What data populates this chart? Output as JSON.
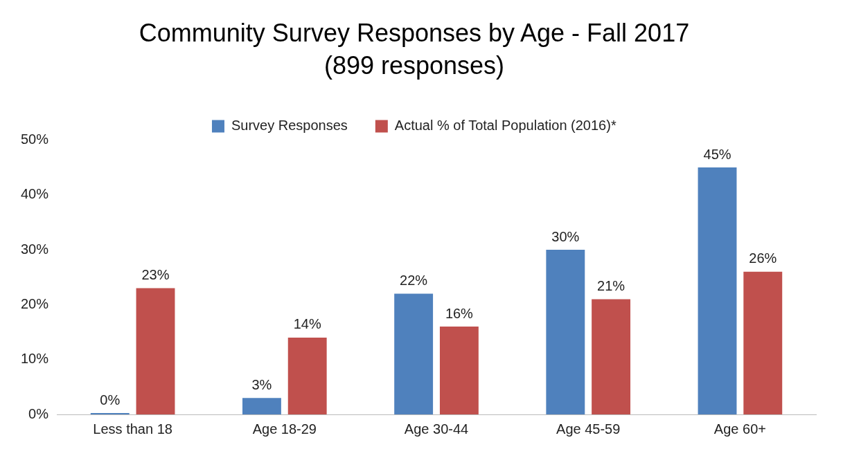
{
  "chart_data": {
    "type": "bar",
    "title": "Community Survey Responses by Age - Fall 2017",
    "subtitle": "(899 responses)",
    "categories": [
      "Less than 18",
      "Age 18-29",
      "Age 30-44",
      "Age 45-59",
      "Age 60+"
    ],
    "series": [
      {
        "name": "Survey Responses",
        "color": "#4f81bd",
        "values": [
          0,
          3,
          22,
          30,
          45
        ],
        "value_labels": [
          "0%",
          "3%",
          "22%",
          "30%",
          "45%"
        ]
      },
      {
        "name": "Actual % of Total Population (2016)*",
        "color": "#c0504d",
        "values": [
          23,
          14,
          16,
          21,
          26
        ],
        "value_labels": [
          "23%",
          "14%",
          "16%",
          "21%",
          "26%"
        ]
      }
    ],
    "ylim": [
      0,
      50
    ],
    "yticks": [
      {
        "value": 0,
        "label": "0%"
      },
      {
        "value": 10,
        "label": "10%"
      },
      {
        "value": 20,
        "label": "20%"
      },
      {
        "value": 30,
        "label": "30%"
      },
      {
        "value": 40,
        "label": "40%"
      },
      {
        "value": 50,
        "label": "50%"
      }
    ],
    "grid": false,
    "legend": "top"
  }
}
